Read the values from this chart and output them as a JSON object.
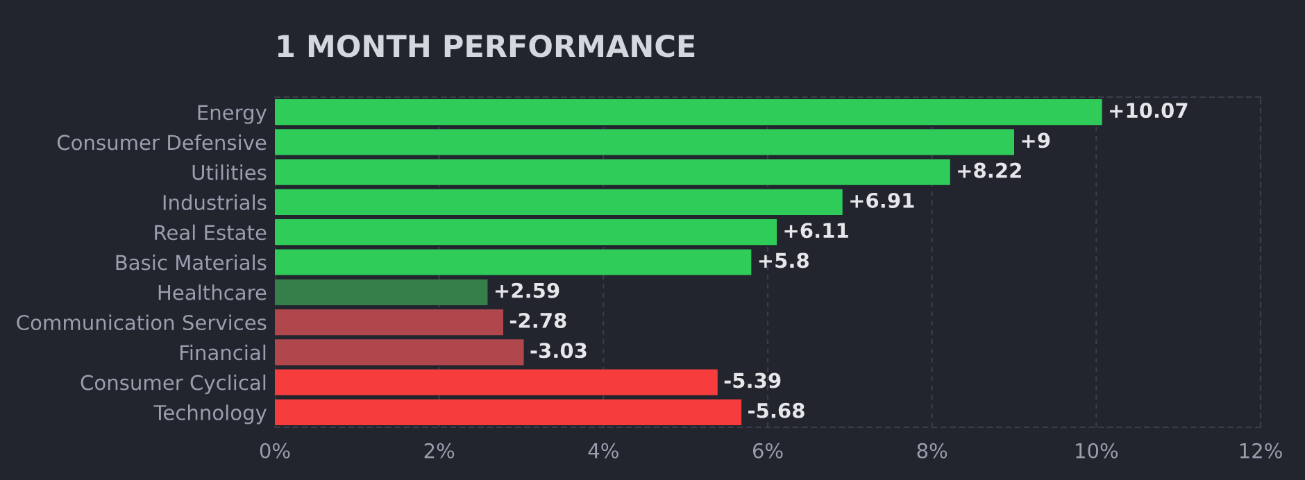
{
  "chart_data": {
    "type": "bar",
    "orientation": "horizontal",
    "title": "1 MONTH PERFORMANCE",
    "categories": [
      "Energy",
      "Consumer Defensive",
      "Utilities",
      "Industrials",
      "Real Estate",
      "Basic Materials",
      "Healthcare",
      "Communication Services",
      "Financial",
      "Consumer Cyclical",
      "Technology"
    ],
    "values": [
      10.07,
      9,
      8.22,
      6.91,
      6.11,
      5.8,
      2.59,
      2.78,
      3.03,
      5.39,
      5.68
    ],
    "value_labels": [
      "+10.07",
      "+9",
      "+8.22",
      "+6.91",
      "+6.11",
      "+5.8",
      "+2.59",
      null,
      null,
      null,
      null
    ],
    "annotations": [
      {
        "text": "-2.78",
        "x": 2.78,
        "y": "Communication Services"
      },
      {
        "text": "-3.03",
        "x": 3.03,
        "y": "Financial"
      },
      {
        "text": "-5.39",
        "x": 5.39,
        "y": "Consumer Cyclical"
      },
      {
        "text": "-5.68",
        "x": 5.68,
        "y": "Technology"
      }
    ],
    "colors": [
      "#30cc5a",
      "#30cc5a",
      "#30cc5a",
      "#30cc5a",
      "#30cc5a",
      "#30cc5a",
      "#357f4a",
      "#b0474c",
      "#b0474c",
      "#f63c3d",
      "#f63c3d"
    ],
    "xlim": [
      0,
      12
    ],
    "xticks": [
      {
        "value": 0,
        "label": "0%"
      },
      {
        "value": 2,
        "label": "2%"
      },
      {
        "value": 4,
        "label": "4%"
      },
      {
        "value": 6,
        "label": "6%"
      },
      {
        "value": 8,
        "label": "8%"
      },
      {
        "value": 10,
        "label": "10%"
      },
      {
        "value": 12,
        "label": "12%"
      }
    ],
    "grid": "x",
    "legend": false
  }
}
